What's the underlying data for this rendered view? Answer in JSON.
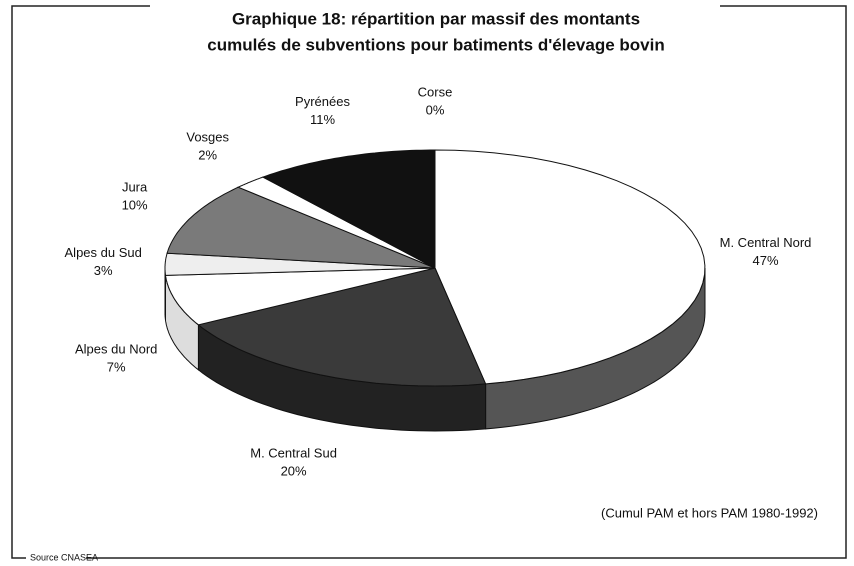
{
  "chart_data": {
    "type": "pie3d",
    "title": "Graphique 18: répartition par massif des montants",
    "subtitle": "cumulés de subventions pour batiments d'élevage bovin",
    "categories": [
      "Corse",
      "M. Central Nord",
      "M. Central Sud",
      "Alpes du Nord",
      "Alpes du Sud",
      "Jura",
      "Vosges",
      "Pyrénées"
    ],
    "values": [
      0,
      47,
      20,
      7,
      3,
      10,
      2,
      11
    ],
    "value_labels": [
      "0%",
      "47%",
      "20%",
      "7%",
      "3%",
      "10%",
      "2%",
      "11%"
    ],
    "colors": [
      "#ffffff",
      "#ffffff",
      "#3a3a3a",
      "#ffffff",
      "#eeeeee",
      "#7a7a7a",
      "#ffffff",
      "#111111"
    ],
    "side_colors": [
      "#dddddd",
      "#555555",
      "#222222",
      "#dddddd",
      "#cccccc",
      "#444444",
      "#dddddd",
      "#000000"
    ],
    "note": "(Cumul PAM et hors PAM 1980-1992)",
    "source": "Source CNASEA"
  }
}
